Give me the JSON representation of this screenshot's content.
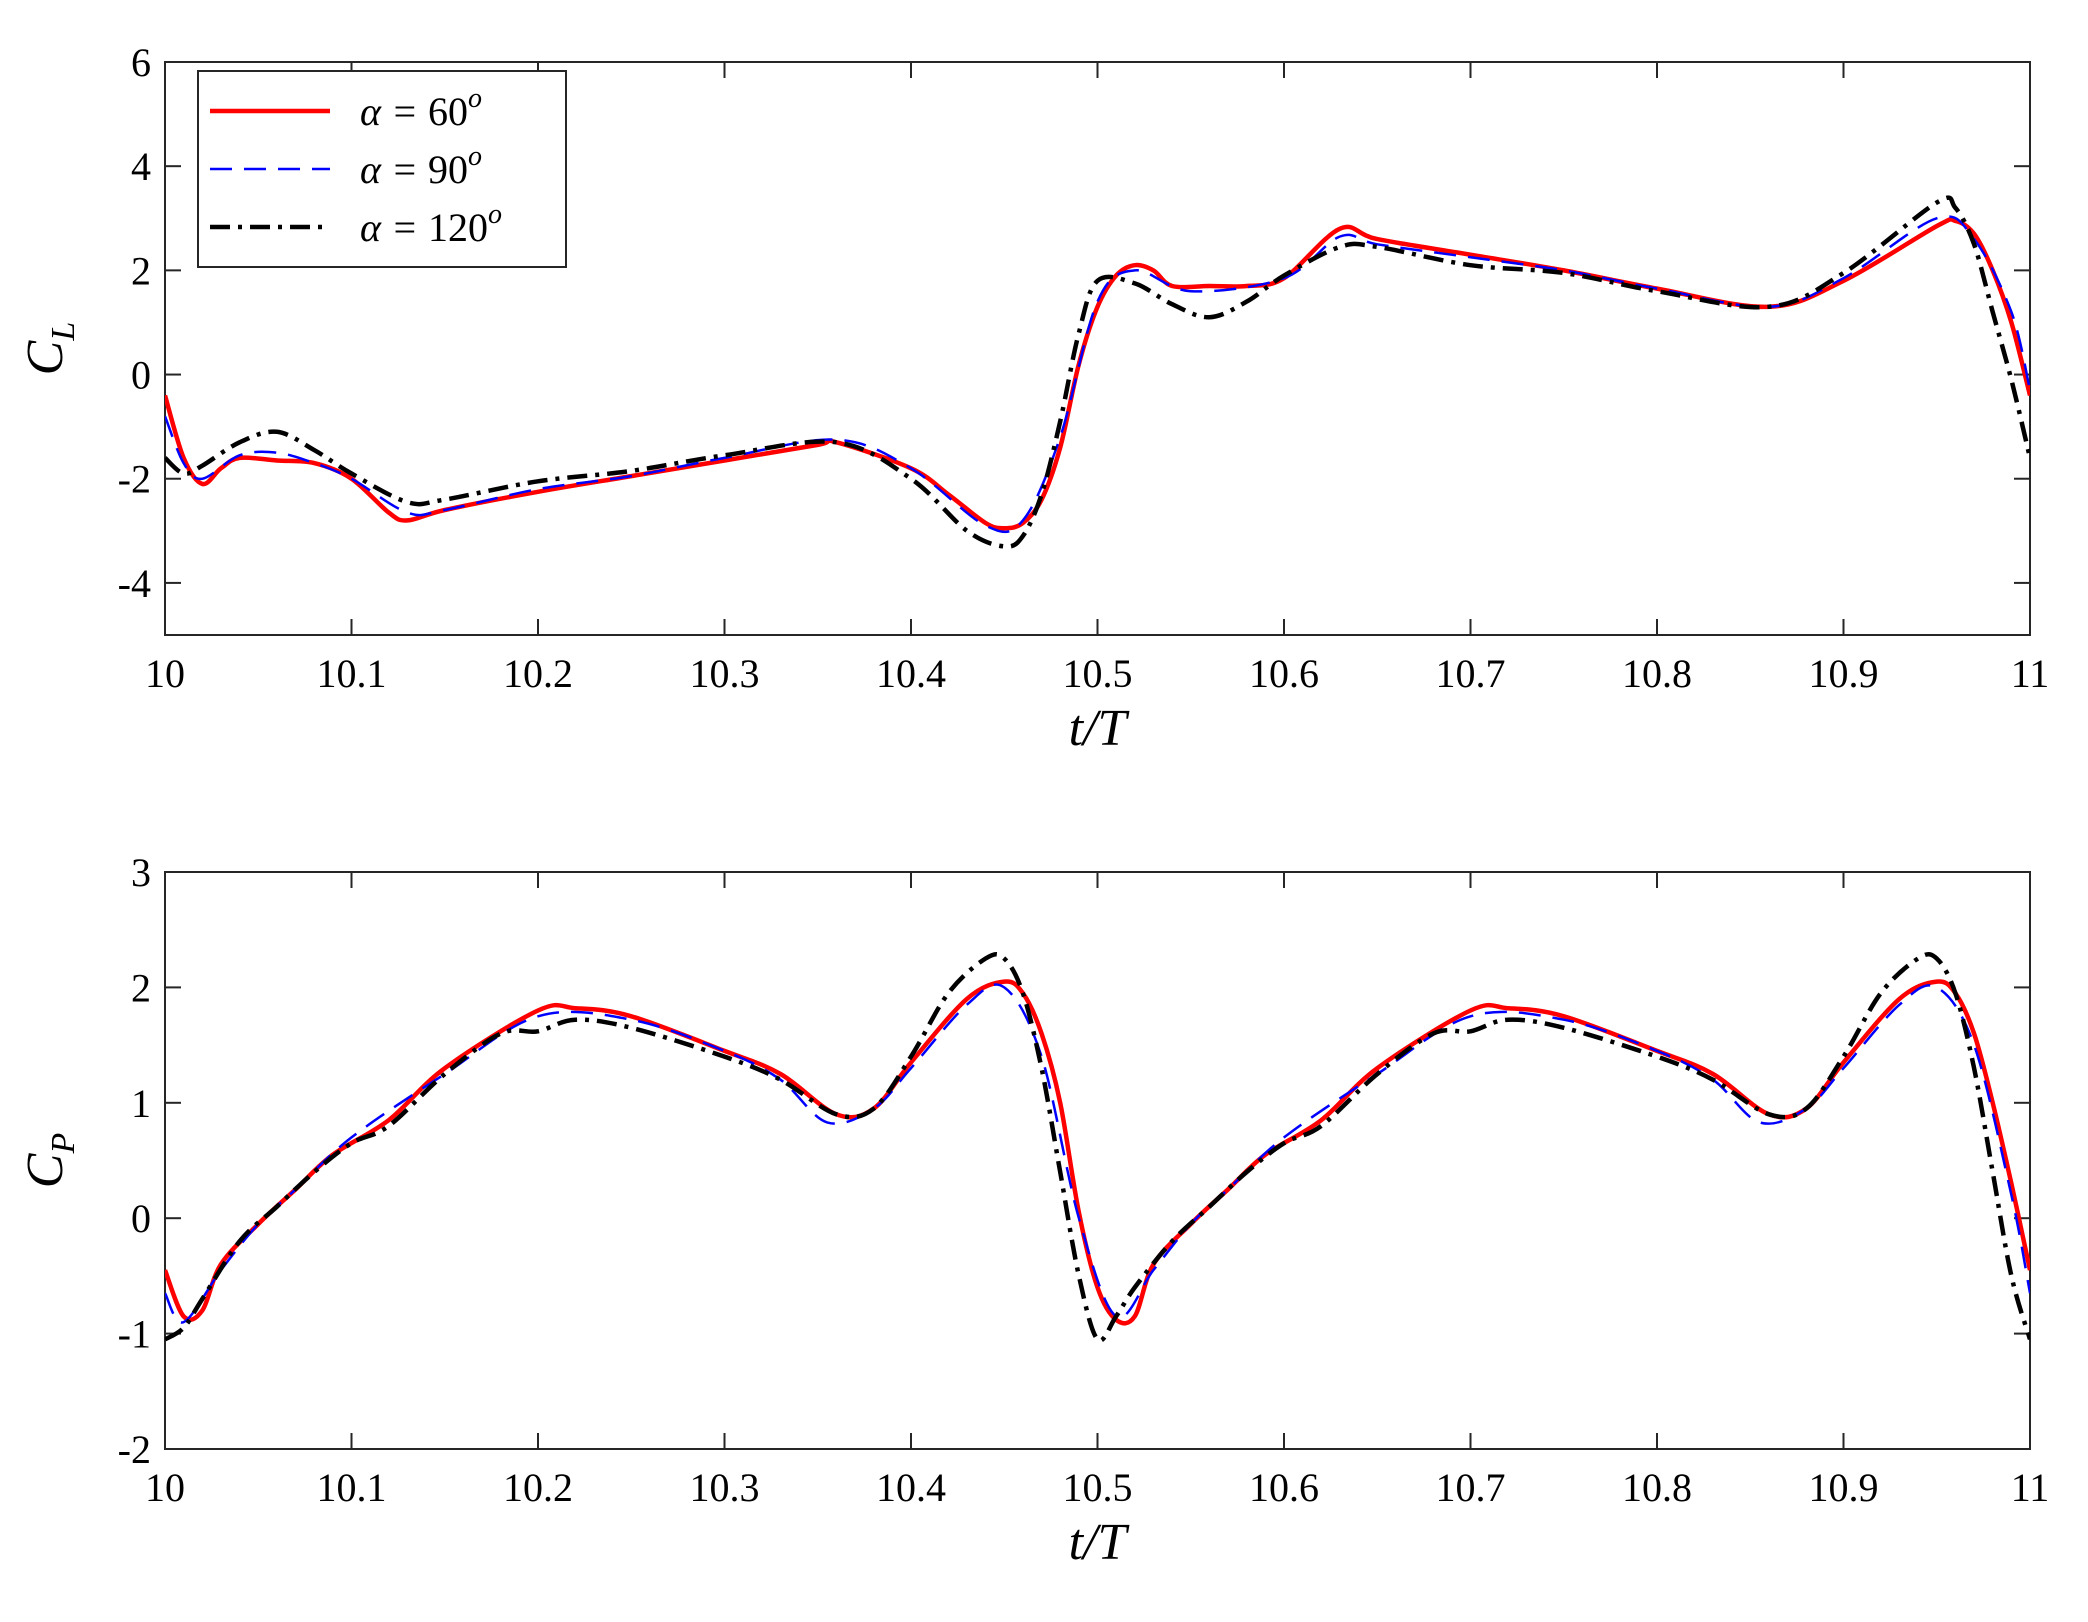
{
  "chart_data": [
    {
      "type": "line",
      "xlabel": "t/T",
      "ylabel": "C",
      "ylabel_sub": "L",
      "xlim": [
        10,
        11
      ],
      "ylim": [
        -5,
        6
      ],
      "xticks": [
        10,
        10.1,
        10.2,
        10.3,
        10.4,
        10.5,
        10.6,
        10.7,
        10.8,
        10.9,
        11
      ],
      "xtick_labels": [
        "10",
        "10.1",
        "10.2",
        "10.3",
        "10.4",
        "10.5",
        "10.6",
        "10.7",
        "10.8",
        "10.9",
        "11"
      ],
      "yticks": [
        -4,
        -2,
        0,
        2,
        4,
        6
      ],
      "ytick_labels": [
        "-4",
        "-2",
        "0",
        "2",
        "4",
        "6"
      ],
      "grid": false,
      "legend": {
        "placement": "top-left",
        "entries": [
          {
            "sym": "α = ",
            "num": "60",
            "sup": "o"
          },
          {
            "sym": "α = ",
            "num": "90",
            "sup": "o"
          },
          {
            "sym": "α = ",
            "num": "120",
            "sup": "o"
          }
        ]
      },
      "series": [
        {
          "color": "#ff0000",
          "dash": "solid",
          "x": [
            10,
            10.01,
            10.02,
            10.03,
            10.04,
            10.06,
            10.08,
            10.1,
            10.12,
            10.13,
            10.15,
            10.2,
            10.25,
            10.3,
            10.35,
            10.36,
            10.4,
            10.42,
            10.44,
            10.45,
            10.46,
            10.47,
            10.48,
            10.49,
            10.5,
            10.51,
            10.52,
            10.53,
            10.54,
            10.56,
            10.58,
            10.6,
            10.63,
            10.65,
            10.7,
            10.75,
            10.8,
            10.86,
            10.9,
            10.95,
            10.96,
            10.97,
            10.98,
            10.99,
            11
          ],
          "y": [
            -0.4,
            -1.6,
            -2.1,
            -1.8,
            -1.6,
            -1.65,
            -1.7,
            -2.0,
            -2.65,
            -2.8,
            -2.6,
            -2.25,
            -1.95,
            -1.65,
            -1.35,
            -1.3,
            -1.8,
            -2.3,
            -2.85,
            -2.95,
            -2.85,
            -2.4,
            -1.4,
            0.2,
            1.3,
            1.9,
            2.1,
            2.0,
            1.7,
            1.7,
            1.7,
            1.85,
            2.8,
            2.6,
            2.3,
            2.0,
            1.65,
            1.3,
            1.8,
            2.85,
            2.95,
            2.7,
            2.0,
            1.0,
            -0.4
          ]
        },
        {
          "color": "#0000ff",
          "dash": "dashed",
          "x": [
            10,
            10.01,
            10.02,
            10.04,
            10.06,
            10.08,
            10.1,
            10.13,
            10.15,
            10.2,
            10.25,
            10.3,
            10.36,
            10.4,
            10.44,
            10.46,
            10.48,
            10.5,
            10.52,
            10.55,
            10.6,
            10.63,
            10.65,
            10.7,
            10.75,
            10.8,
            10.86,
            10.9,
            10.95,
            10.97,
            10.99,
            11
          ],
          "y": [
            -0.8,
            -1.7,
            -2.0,
            -1.55,
            -1.5,
            -1.7,
            -2.0,
            -2.65,
            -2.6,
            -2.2,
            -1.95,
            -1.6,
            -1.25,
            -1.8,
            -2.9,
            -2.8,
            -1.2,
            1.4,
            2.0,
            1.6,
            1.85,
            2.65,
            2.5,
            2.25,
            2.0,
            1.65,
            1.3,
            1.85,
            3.0,
            2.6,
            1.2,
            -0.3
          ]
        },
        {
          "color": "#000000",
          "dash": "dashdot",
          "x": [
            10,
            10.01,
            10.02,
            10.04,
            10.06,
            10.08,
            10.1,
            10.13,
            10.15,
            10.2,
            10.25,
            10.3,
            10.36,
            10.4,
            10.43,
            10.45,
            10.46,
            10.47,
            10.48,
            10.49,
            10.5,
            10.52,
            10.54,
            10.56,
            10.58,
            10.6,
            10.63,
            10.65,
            10.7,
            10.75,
            10.8,
            10.86,
            10.9,
            10.95,
            10.96,
            10.97,
            10.98,
            10.99,
            11
          ],
          "y": [
            -1.6,
            -1.9,
            -1.75,
            -1.3,
            -1.1,
            -1.45,
            -1.9,
            -2.45,
            -2.4,
            -2.05,
            -1.85,
            -1.55,
            -1.3,
            -2.0,
            -3.0,
            -3.3,
            -3.1,
            -2.3,
            -0.9,
            0.8,
            1.8,
            1.75,
            1.35,
            1.1,
            1.4,
            1.9,
            2.45,
            2.45,
            2.1,
            1.95,
            1.6,
            1.3,
            1.95,
            3.3,
            3.2,
            2.5,
            1.2,
            -0.1,
            -1.6
          ]
        }
      ]
    },
    {
      "type": "line",
      "xlabel": "t/T",
      "ylabel": "C",
      "ylabel_sub": "P",
      "xlim": [
        10,
        11
      ],
      "ylim": [
        -2,
        3
      ],
      "xticks": [
        10,
        10.1,
        10.2,
        10.3,
        10.4,
        10.5,
        10.6,
        10.7,
        10.8,
        10.9,
        11
      ],
      "xtick_labels": [
        "10",
        "10.1",
        "10.2",
        "10.3",
        "10.4",
        "10.5",
        "10.6",
        "10.7",
        "10.8",
        "10.9",
        "11"
      ],
      "yticks": [
        -2,
        -1,
        0,
        1,
        2,
        3
      ],
      "ytick_labels": [
        "-2",
        "-1",
        "0",
        "1",
        "2",
        "3"
      ],
      "grid": false,
      "series": [
        {
          "color": "#ff0000",
          "dash": "solid",
          "x": [
            10,
            10.01,
            10.02,
            10.03,
            10.05,
            10.07,
            10.09,
            10.12,
            10.15,
            10.2,
            10.22,
            10.25,
            10.3,
            10.33,
            10.36,
            10.38,
            10.4,
            10.43,
            10.45,
            10.46,
            10.47,
            10.48,
            10.49,
            10.5,
            10.51,
            10.52,
            10.53,
            10.55,
            10.57,
            10.59,
            10.62,
            10.65,
            10.7,
            10.72,
            10.75,
            10.8,
            10.83,
            10.86,
            10.88,
            10.9,
            10.93,
            10.95,
            10.96,
            10.97,
            10.98,
            10.99,
            11
          ],
          "y": [
            -0.45,
            -0.85,
            -0.8,
            -0.4,
            -0.05,
            0.25,
            0.55,
            0.85,
            1.3,
            1.8,
            1.82,
            1.75,
            1.45,
            1.25,
            0.9,
            0.95,
            1.35,
            1.9,
            2.05,
            1.95,
            1.6,
            1.0,
            0.05,
            -0.6,
            -0.88,
            -0.85,
            -0.4,
            -0.05,
            0.25,
            0.55,
            0.85,
            1.3,
            1.8,
            1.82,
            1.75,
            1.45,
            1.25,
            0.9,
            0.95,
            1.35,
            1.9,
            2.05,
            1.95,
            1.6,
            1.0,
            0.3,
            -0.45
          ]
        },
        {
          "color": "#0000ff",
          "dash": "dashed",
          "x": [
            10,
            10.01,
            10.03,
            10.05,
            10.07,
            10.1,
            10.15,
            10.2,
            10.25,
            10.3,
            10.33,
            10.355,
            10.38,
            10.4,
            10.43,
            10.45,
            10.47,
            10.49,
            10.51,
            10.53,
            10.55,
            10.57,
            10.6,
            10.65,
            10.7,
            10.75,
            10.8,
            10.83,
            10.855,
            10.88,
            10.9,
            10.93,
            10.95,
            10.97,
            10.99,
            11
          ],
          "y": [
            -0.65,
            -0.9,
            -0.45,
            -0.05,
            0.25,
            0.7,
            1.25,
            1.75,
            1.72,
            1.45,
            1.2,
            0.83,
            0.95,
            1.3,
            1.85,
            2.0,
            1.4,
            0.0,
            -0.85,
            -0.45,
            -0.05,
            0.25,
            0.7,
            1.25,
            1.75,
            1.72,
            1.45,
            1.2,
            0.83,
            0.95,
            1.3,
            1.85,
            2.0,
            1.5,
            0.2,
            -0.65
          ]
        },
        {
          "color": "#000000",
          "dash": "dashdot",
          "x": [
            10,
            10.01,
            10.02,
            10.04,
            10.06,
            10.08,
            10.1,
            10.12,
            10.15,
            10.18,
            10.2,
            10.22,
            10.25,
            10.3,
            10.33,
            10.36,
            10.38,
            10.4,
            10.42,
            10.44,
            10.45,
            10.46,
            10.47,
            10.48,
            10.49,
            10.5,
            10.51,
            10.52,
            10.54,
            10.56,
            10.58,
            10.6,
            10.62,
            10.65,
            10.68,
            10.7,
            10.72,
            10.75,
            10.8,
            10.83,
            10.86,
            10.88,
            10.9,
            10.92,
            10.94,
            10.95,
            10.96,
            10.97,
            10.98,
            10.99,
            11
          ],
          "y": [
            -1.05,
            -0.95,
            -0.7,
            -0.2,
            0.1,
            0.4,
            0.65,
            0.8,
            1.25,
            1.6,
            1.62,
            1.72,
            1.65,
            1.4,
            1.2,
            0.9,
            0.95,
            1.4,
            1.95,
            2.25,
            2.25,
            1.95,
            1.3,
            0.4,
            -0.5,
            -1.05,
            -0.85,
            -0.6,
            -0.2,
            0.1,
            0.4,
            0.65,
            0.8,
            1.25,
            1.6,
            1.62,
            1.72,
            1.65,
            1.4,
            1.2,
            0.9,
            0.95,
            1.4,
            1.95,
            2.25,
            2.25,
            1.95,
            1.3,
            0.4,
            -0.5,
            -1.05
          ]
        }
      ]
    }
  ]
}
